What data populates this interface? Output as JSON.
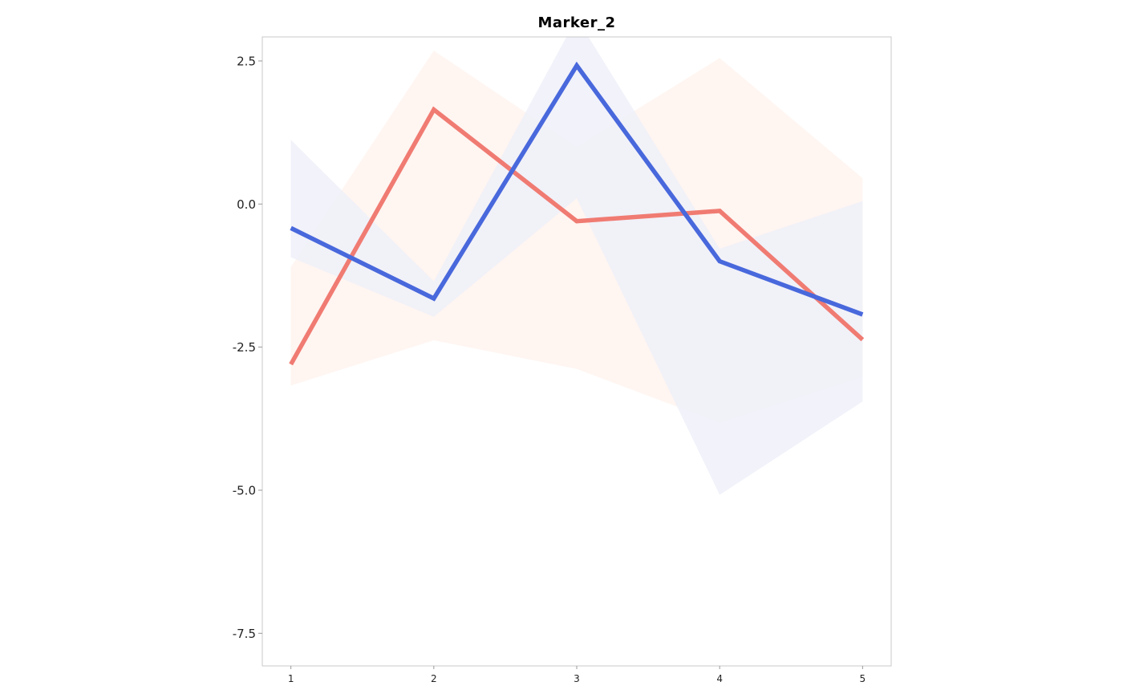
{
  "chart_data": {
    "type": "line",
    "title": "Marker_2",
    "xlabel": "",
    "ylabel": "",
    "x": [
      1,
      2,
      3,
      4,
      5
    ],
    "xlim": [
      0.8,
      5.2
    ],
    "ylim": [
      -8.07,
      2.92
    ],
    "yticks": [
      2.5,
      0.0,
      -2.5,
      -5.0,
      -7.5
    ],
    "ytick_labels": [
      "2.5",
      "0.0",
      "-2.5",
      "-5.0",
      "-7.5"
    ],
    "xtick_labels": [
      "1",
      "2",
      "3",
      "4",
      "5"
    ],
    "grid": false,
    "legend": "none",
    "series": [
      {
        "color": "#F07B72",
        "band_color": "#FFF3EE",
        "values": [
          -2.8,
          1.65,
          -0.3,
          -0.12,
          -2.37
        ],
        "upper": [
          -1.1,
          2.68,
          1.0,
          2.55,
          0.45
        ],
        "lower": [
          -3.17,
          -2.38,
          -2.88,
          -3.82,
          -3.02
        ]
      },
      {
        "color": "#4868DC",
        "band_color": "#EEF0F9",
        "values": [
          -0.42,
          -1.65,
          2.42,
          -1.0,
          -1.93
        ],
        "upper": [
          1.12,
          -1.35,
          3.25,
          -0.78,
          0.05
        ],
        "lower": [
          -0.93,
          -1.97,
          0.1,
          -5.08,
          -3.45
        ]
      }
    ]
  }
}
